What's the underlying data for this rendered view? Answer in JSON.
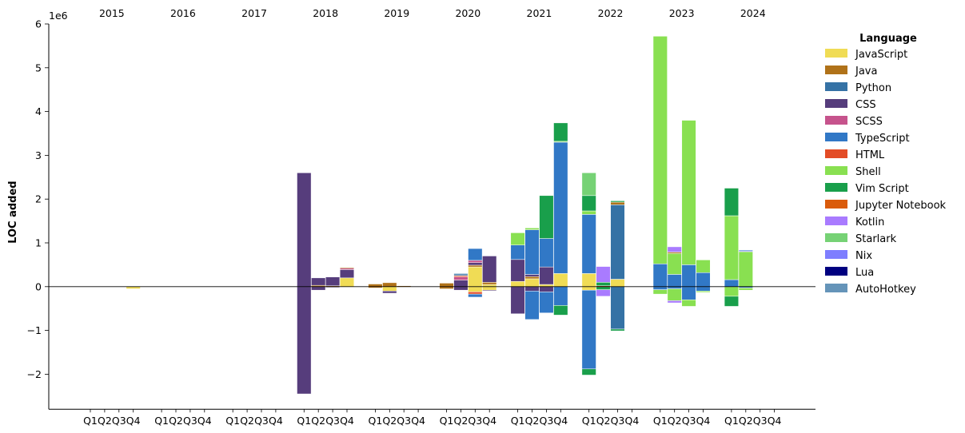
{
  "chart_data": {
    "type": "bar",
    "stacked": true,
    "ylabel": "LOC added",
    "y_offset_label": "1e6",
    "ylim": [
      -2.8,
      6.0
    ],
    "yticks": [
      -2,
      -1,
      0,
      1,
      2,
      3,
      4,
      5,
      6
    ],
    "ytick_labels": [
      "−2",
      "−1",
      "0",
      "1",
      "2",
      "3",
      "4",
      "5",
      "6"
    ],
    "years": [
      "2015",
      "2016",
      "2017",
      "2018",
      "2019",
      "2020",
      "2021",
      "2022",
      "2023",
      "2024"
    ],
    "quarters": [
      "Q1",
      "Q2",
      "Q3",
      "Q4"
    ],
    "legend": {
      "title": "Language",
      "placement": "right",
      "entries": [
        {
          "name": "JavaScript",
          "color": "#f0dc55"
        },
        {
          "name": "Java",
          "color": "#b07219"
        },
        {
          "name": "Python",
          "color": "#3572a5"
        },
        {
          "name": "CSS",
          "color": "#563d7c"
        },
        {
          "name": "SCSS",
          "color": "#c6538c"
        },
        {
          "name": "TypeScript",
          "color": "#3178c6"
        },
        {
          "name": "HTML",
          "color": "#e34c26"
        },
        {
          "name": "Shell",
          "color": "#89e051"
        },
        {
          "name": "Vim Script",
          "color": "#199f4b"
        },
        {
          "name": "Jupyter Notebook",
          "color": "#da5b0b"
        },
        {
          "name": "Kotlin",
          "color": "#a97bff"
        },
        {
          "name": "Starlark",
          "color": "#76d275"
        },
        {
          "name": "Nix",
          "color": "#7e7eff"
        },
        {
          "name": "Lua",
          "color": "#000080"
        },
        {
          "name": "AutoHotkey",
          "color": "#6594b9"
        }
      ]
    },
    "bars": [
      {
        "year": "2015",
        "quarter": "Q4",
        "segments": [
          {
            "lang": "JavaScript",
            "value": -0.05
          }
        ]
      },
      {
        "year": "2017",
        "quarter": "Q4",
        "segments": [
          {
            "lang": "Java",
            "value": 0.01
          }
        ]
      },
      {
        "year": "2018",
        "quarter": "Q1",
        "segments": [
          {
            "lang": "CSS",
            "value": 2.6
          },
          {
            "lang": "CSS",
            "value": -2.45
          }
        ]
      },
      {
        "year": "2018",
        "quarter": "Q2",
        "segments": [
          {
            "lang": "Java",
            "value": 0.03
          },
          {
            "lang": "CSS",
            "value": 0.17
          },
          {
            "lang": "CSS",
            "value": -0.08
          }
        ]
      },
      {
        "year": "2018",
        "quarter": "Q3",
        "segments": [
          {
            "lang": "Java",
            "value": 0.02
          },
          {
            "lang": "CSS",
            "value": 0.2
          },
          {
            "lang": "CSS",
            "value": -0.02
          }
        ]
      },
      {
        "year": "2018",
        "quarter": "Q4",
        "segments": [
          {
            "lang": "JavaScript",
            "value": 0.2
          },
          {
            "lang": "CSS",
            "value": 0.19
          },
          {
            "lang": "SCSS",
            "value": 0.03
          },
          {
            "lang": "Java",
            "value": 0.02
          }
        ]
      },
      {
        "year": "2019",
        "quarter": "Q1",
        "segments": [
          {
            "lang": "Java",
            "value": 0.06
          },
          {
            "lang": "Java",
            "value": -0.03
          }
        ]
      },
      {
        "year": "2019",
        "quarter": "Q2",
        "segments": [
          {
            "lang": "Java",
            "value": 0.09
          },
          {
            "lang": "JavaScript",
            "value": -0.1
          },
          {
            "lang": "CSS",
            "value": -0.05
          }
        ]
      },
      {
        "year": "2019",
        "quarter": "Q3",
        "segments": [
          {
            "lang": "Java",
            "value": 0.02
          }
        ]
      },
      {
        "year": "2019",
        "quarter": "Q4",
        "segments": [
          {
            "lang": "Java",
            "value": 0.01
          }
        ]
      },
      {
        "year": "2020",
        "quarter": "Q1",
        "segments": [
          {
            "lang": "Java",
            "value": 0.08
          },
          {
            "lang": "Java",
            "value": -0.05
          }
        ]
      },
      {
        "year": "2020",
        "quarter": "Q2",
        "segments": [
          {
            "lang": "CSS",
            "value": 0.15
          },
          {
            "lang": "SCSS",
            "value": 0.07
          },
          {
            "lang": "HTML",
            "value": 0.03
          },
          {
            "lang": "AutoHotkey",
            "value": 0.05
          },
          {
            "lang": "CSS",
            "value": -0.08
          }
        ]
      },
      {
        "year": "2020",
        "quarter": "Q3",
        "segments": [
          {
            "lang": "JavaScript",
            "value": 0.45
          },
          {
            "lang": "Java",
            "value": 0.04
          },
          {
            "lang": "CSS",
            "value": 0.06
          },
          {
            "lang": "SCSS",
            "value": 0.05
          },
          {
            "lang": "TypeScript",
            "value": 0.27
          },
          {
            "lang": "JavaScript",
            "value": -0.12
          },
          {
            "lang": "HTML",
            "value": -0.05
          },
          {
            "lang": "TypeScript",
            "value": -0.07
          }
        ]
      },
      {
        "year": "2020",
        "quarter": "Q4",
        "segments": [
          {
            "lang": "JavaScript",
            "value": 0.05
          },
          {
            "lang": "Java",
            "value": 0.05
          },
          {
            "lang": "CSS",
            "value": 0.6
          },
          {
            "lang": "JavaScript",
            "value": -0.08
          },
          {
            "lang": "CSS",
            "value": -0.02
          }
        ]
      },
      {
        "year": "2021",
        "quarter": "Q1",
        "segments": [
          {
            "lang": "JavaScript",
            "value": 0.12
          },
          {
            "lang": "CSS",
            "value": 0.5
          },
          {
            "lang": "TypeScript",
            "value": 0.33
          },
          {
            "lang": "Shell",
            "value": 0.28
          },
          {
            "lang": "CSS",
            "value": -0.62
          }
        ]
      },
      {
        "year": "2021",
        "quarter": "Q2",
        "segments": [
          {
            "lang": "JavaScript",
            "value": 0.18
          },
          {
            "lang": "Java",
            "value": 0.05
          },
          {
            "lang": "CSS",
            "value": 0.05
          },
          {
            "lang": "TypeScript",
            "value": 1.02
          },
          {
            "lang": "Shell",
            "value": 0.04
          },
          {
            "lang": "CSS",
            "value": -0.1
          },
          {
            "lang": "TypeScript",
            "value": -0.65
          }
        ]
      },
      {
        "year": "2021",
        "quarter": "Q3",
        "segments": [
          {
            "lang": "JavaScript",
            "value": 0.05
          },
          {
            "lang": "CSS",
            "value": 0.4
          },
          {
            "lang": "TypeScript",
            "value": 0.65
          },
          {
            "lang": "Vim Script",
            "value": 0.98
          },
          {
            "lang": "CSS",
            "value": -0.12
          },
          {
            "lang": "TypeScript",
            "value": -0.48
          }
        ]
      },
      {
        "year": "2021",
        "quarter": "Q4",
        "segments": [
          {
            "lang": "JavaScript",
            "value": 0.3
          },
          {
            "lang": "TypeScript",
            "value": 3.0
          },
          {
            "lang": "Shell",
            "value": 0.02
          },
          {
            "lang": "Vim Script",
            "value": 0.42
          },
          {
            "lang": "TypeScript",
            "value": -0.43
          },
          {
            "lang": "Vim Script",
            "value": -0.22
          }
        ]
      },
      {
        "year": "2022",
        "quarter": "Q1",
        "segments": [
          {
            "lang": "JavaScript",
            "value": 0.3
          },
          {
            "lang": "TypeScript",
            "value": 1.35
          },
          {
            "lang": "Shell",
            "value": 0.08
          },
          {
            "lang": "Vim Script",
            "value": 0.35
          },
          {
            "lang": "Starlark",
            "value": 0.52
          },
          {
            "lang": "JavaScript",
            "value": -0.08
          },
          {
            "lang": "TypeScript",
            "value": -1.8
          },
          {
            "lang": "Vim Script",
            "value": -0.14
          }
        ]
      },
      {
        "year": "2022",
        "quarter": "Q2",
        "segments": [
          {
            "lang": "HTML",
            "value": 0.02
          },
          {
            "lang": "Vim Script",
            "value": 0.08
          },
          {
            "lang": "Kotlin",
            "value": 0.36
          },
          {
            "lang": "Vim Script",
            "value": -0.07
          },
          {
            "lang": "Kotlin",
            "value": -0.15
          }
        ]
      },
      {
        "year": "2022",
        "quarter": "Q3",
        "segments": [
          {
            "lang": "JavaScript",
            "value": 0.17
          },
          {
            "lang": "Python",
            "value": 1.7
          },
          {
            "lang": "Java",
            "value": 0.06
          },
          {
            "lang": "Vim Script",
            "value": 0.03
          },
          {
            "lang": "Python",
            "value": -0.97
          },
          {
            "lang": "Vim Script",
            "value": -0.04
          }
        ]
      },
      {
        "year": "2023",
        "quarter": "Q1",
        "segments": [
          {
            "lang": "TypeScript",
            "value": 0.52
          },
          {
            "lang": "Shell",
            "value": 5.2
          },
          {
            "lang": "TypeScript",
            "value": -0.07
          },
          {
            "lang": "Shell",
            "value": -0.1
          }
        ]
      },
      {
        "year": "2023",
        "quarter": "Q2",
        "segments": [
          {
            "lang": "TypeScript",
            "value": 0.28
          },
          {
            "lang": "Shell",
            "value": 0.48
          },
          {
            "lang": "Java",
            "value": 0.03
          },
          {
            "lang": "Kotlin",
            "value": 0.12
          },
          {
            "lang": "TypeScript",
            "value": -0.05
          },
          {
            "lang": "Shell",
            "value": -0.27
          },
          {
            "lang": "Kotlin",
            "value": -0.05
          }
        ]
      },
      {
        "year": "2023",
        "quarter": "Q3",
        "segments": [
          {
            "lang": "TypeScript",
            "value": 0.5
          },
          {
            "lang": "Shell",
            "value": 3.3
          },
          {
            "lang": "TypeScript",
            "value": -0.3
          },
          {
            "lang": "Shell",
            "value": -0.15
          }
        ]
      },
      {
        "year": "2023",
        "quarter": "Q4",
        "segments": [
          {
            "lang": "TypeScript",
            "value": 0.32
          },
          {
            "lang": "Shell",
            "value": 0.29
          },
          {
            "lang": "TypeScript",
            "value": -0.1
          },
          {
            "lang": "Shell",
            "value": -0.03
          }
        ]
      },
      {
        "year": "2024",
        "quarter": "Q1",
        "segments": [
          {
            "lang": "TypeScript",
            "value": 0.16
          },
          {
            "lang": "Shell",
            "value": 1.46
          },
          {
            "lang": "Vim Script",
            "value": 0.63
          },
          {
            "lang": "Shell",
            "value": -0.22
          },
          {
            "lang": "Vim Script",
            "value": -0.23
          }
        ]
      },
      {
        "year": "2024",
        "quarter": "Q2",
        "segments": [
          {
            "lang": "Shell",
            "value": 0.8
          },
          {
            "lang": "Nix",
            "value": 0.02
          },
          {
            "lang": "TypeScript",
            "value": 0.02
          },
          {
            "lang": "TypeScript",
            "value": -0.03
          },
          {
            "lang": "Shell",
            "value": -0.05
          }
        ]
      }
    ]
  }
}
